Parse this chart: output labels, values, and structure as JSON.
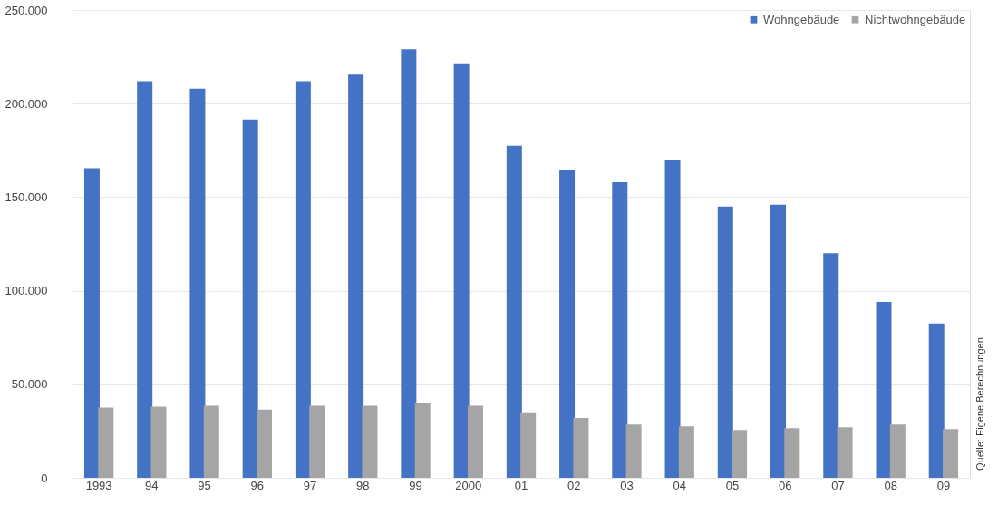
{
  "chart_data": {
    "type": "bar",
    "categories": [
      "1993",
      "94",
      "95",
      "96",
      "97",
      "98",
      "99",
      "2000",
      "01",
      "02",
      "03",
      "04",
      "05",
      "06",
      "07",
      "08",
      "09"
    ],
    "series": [
      {
        "name": "Wohngebäude",
        "color": "#4472c4",
        "values": [
          165500,
          212000,
          208000,
          191500,
          212000,
          215500,
          229000,
          221000,
          177500,
          164500,
          158000,
          170000,
          145000,
          146000,
          120000,
          94000,
          82500
        ]
      },
      {
        "name": "Nichtwohngebäude",
        "color": "#a5a5a5",
        "values": [
          37500,
          38000,
          38500,
          36500,
          38500,
          38500,
          40000,
          38500,
          35000,
          32000,
          28500,
          27500,
          25500,
          26500,
          27000,
          28500,
          26000
        ]
      }
    ],
    "ylim": [
      0,
      250000
    ],
    "yticks": [
      0,
      {
        "value": 50000,
        "label": "50.000"
      },
      {
        "value": 100000,
        "label": "100.000"
      },
      {
        "value": 150000,
        "label": "150.000"
      },
      {
        "value": 200000,
        "label": "200.000"
      },
      {
        "value": 250000,
        "label": "250.000"
      }
    ],
    "grid": "y",
    "legend": "top right",
    "annotations": [
      "Quelle: Eigene Berechnungen"
    ]
  }
}
